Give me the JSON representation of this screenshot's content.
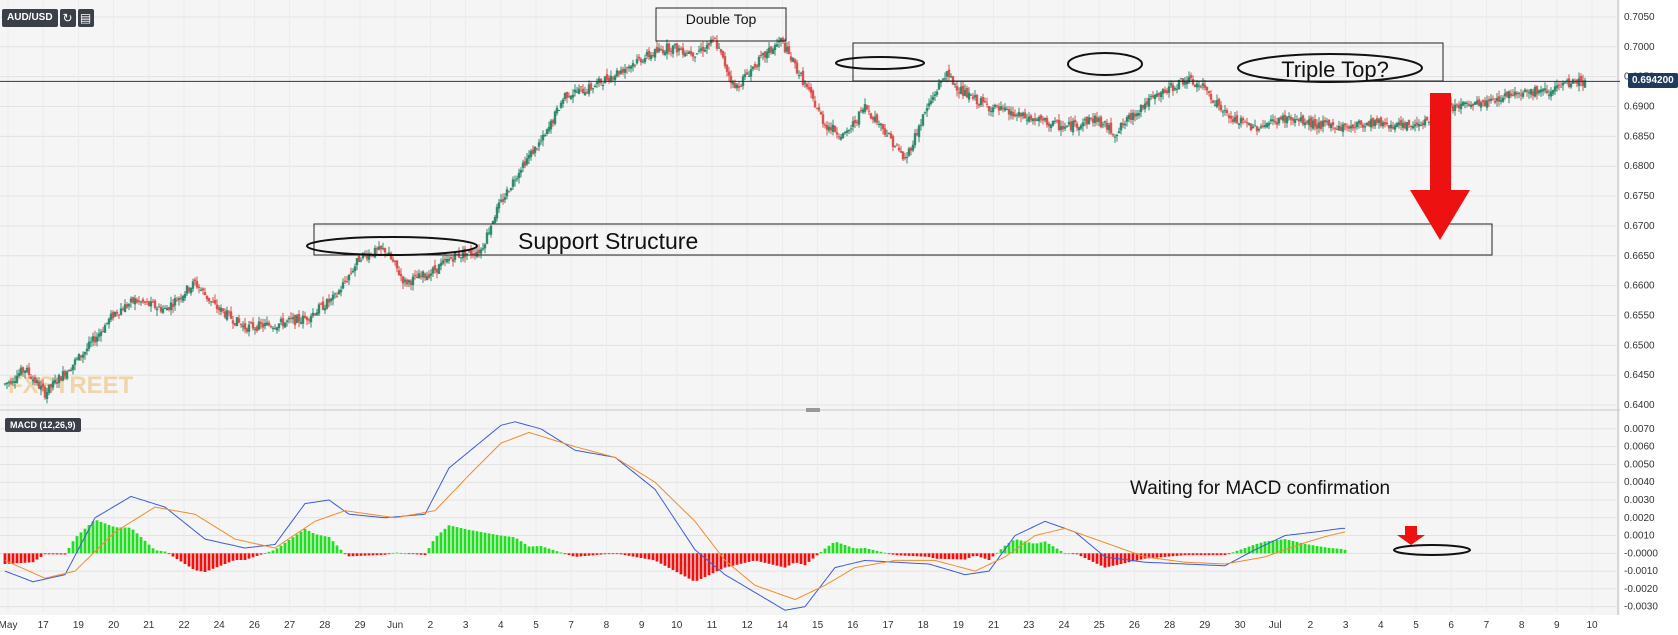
{
  "header": {
    "symbol": "AUD/USD",
    "refresh_icon": "refresh-icon",
    "settings_icon": "chart-settings-icon"
  },
  "watermark": "FXSTREET",
  "current_price_label": "0.694200",
  "indicator_label": "MACD (12,26,9)",
  "colors": {
    "up": "#2e8b6f",
    "down": "#d9534f",
    "macd": "#3b5bdb",
    "signal": "#f28c28",
    "hist_pos": "#22dd22",
    "hist_neg": "#ee1111",
    "arrow": "#ee1111"
  },
  "annotations": {
    "double_top": "Double Top",
    "triple_top": "Triple Top?",
    "support": "Support Structure",
    "macd_wait": "Waiting for MACD confirmation"
  },
  "x_ticks": [
    "May",
    "17",
    "19",
    "20",
    "21",
    "22",
    "24",
    "26",
    "27",
    "28",
    "29",
    "Jun",
    "2",
    "3",
    "4",
    "5",
    "7",
    "8",
    "9",
    "10",
    "11",
    "12",
    "14",
    "15",
    "16",
    "17",
    "18",
    "19",
    "21",
    "23",
    "24",
    "25",
    "26",
    "28",
    "29",
    "30",
    "Jul",
    "2",
    "3",
    "4",
    "5",
    "6",
    "7",
    "8",
    "9",
    "10"
  ],
  "chart_data": [
    {
      "type": "candlestick",
      "symbol": "AUD/USD",
      "ylim": [
        0.6395,
        0.7065
      ],
      "yticks": [
        "0.7050",
        "0.7000",
        "0.6950",
        "0.6900",
        "0.6850",
        "0.6800",
        "0.6750",
        "0.6700",
        "0.6650",
        "0.6600",
        "0.6550",
        "0.6500",
        "0.6450",
        "0.6400"
      ],
      "anchors": [
        [
          0,
          0.6435
        ],
        [
          10,
          0.646
        ],
        [
          20,
          0.642
        ],
        [
          40,
          0.649
        ],
        [
          55,
          0.6555
        ],
        [
          65,
          0.6575
        ],
        [
          80,
          0.656
        ],
        [
          95,
          0.6605
        ],
        [
          105,
          0.6565
        ],
        [
          120,
          0.653
        ],
        [
          135,
          0.6535
        ],
        [
          150,
          0.6545
        ],
        [
          165,
          0.658
        ],
        [
          178,
          0.665
        ],
        [
          190,
          0.666
        ],
        [
          200,
          0.6605
        ],
        [
          212,
          0.662
        ],
        [
          225,
          0.665
        ],
        [
          238,
          0.666
        ],
        [
          245,
          0.672
        ],
        [
          258,
          0.68
        ],
        [
          270,
          0.685
        ],
        [
          280,
          0.692
        ],
        [
          292,
          0.693
        ],
        [
          305,
          0.6955
        ],
        [
          318,
          0.698
        ],
        [
          332,
          0.7
        ],
        [
          345,
          0.699
        ],
        [
          355,
          0.701
        ],
        [
          365,
          0.693
        ],
        [
          375,
          0.697
        ],
        [
          388,
          0.701
        ],
        [
          398,
          0.695
        ],
        [
          410,
          0.687
        ],
        [
          420,
          0.685
        ],
        [
          430,
          0.69
        ],
        [
          440,
          0.686
        ],
        [
          450,
          0.681
        ],
        [
          460,
          0.689
        ],
        [
          470,
          0.6955
        ],
        [
          480,
          0.692
        ],
        [
          492,
          0.69
        ],
        [
          505,
          0.6885
        ],
        [
          518,
          0.6875
        ],
        [
          530,
          0.6865
        ],
        [
          545,
          0.688
        ],
        [
          555,
          0.6855
        ],
        [
          568,
          0.69
        ],
        [
          580,
          0.6925
        ],
        [
          590,
          0.6945
        ],
        [
          600,
          0.693
        ],
        [
          612,
          0.688
        ],
        [
          625,
          0.6865
        ],
        [
          640,
          0.688
        ],
        [
          655,
          0.687
        ],
        [
          670,
          0.6865
        ],
        [
          685,
          0.6875
        ],
        [
          700,
          0.6865
        ],
        [
          712,
          0.688
        ],
        [
          725,
          0.69
        ],
        [
          740,
          0.6905
        ],
        [
          755,
          0.6925
        ],
        [
          770,
          0.6925
        ],
        [
          785,
          0.694
        ],
        [
          790,
          0.6942
        ]
      ],
      "current_price": 0.6942,
      "xlabel": "",
      "ylabel": ""
    },
    {
      "type": "macd",
      "name": "MACD (12,26,9)",
      "ylim": [
        -0.0033,
        0.0075
      ],
      "yticks": [
        "0.0070",
        "0.0060",
        "0.0050",
        "0.0040",
        "0.0030",
        "0.0020",
        "0.0010",
        "-0.0000",
        "-0.0010",
        "-0.0020",
        "-0.0030"
      ],
      "macd_anchors": [
        [
          0,
          -0.001
        ],
        [
          14,
          -0.0016
        ],
        [
          30,
          -0.0012
        ],
        [
          45,
          0.002
        ],
        [
          63,
          0.0032
        ],
        [
          80,
          0.0026
        ],
        [
          100,
          0.0008
        ],
        [
          120,
          0.0003
        ],
        [
          135,
          0.0005
        ],
        [
          150,
          0.0028
        ],
        [
          162,
          0.003
        ],
        [
          172,
          0.0022
        ],
        [
          190,
          0.002
        ],
        [
          210,
          0.0022
        ],
        [
          222,
          0.0048
        ],
        [
          235,
          0.006
        ],
        [
          248,
          0.0072
        ],
        [
          255,
          0.0074
        ],
        [
          268,
          0.007
        ],
        [
          285,
          0.0058
        ],
        [
          305,
          0.0054
        ],
        [
          325,
          0.0036
        ],
        [
          345,
          0.0002
        ],
        [
          360,
          -0.0012
        ],
        [
          375,
          -0.0022
        ],
        [
          390,
          -0.0032
        ],
        [
          400,
          -0.003
        ],
        [
          415,
          -0.0008
        ],
        [
          430,
          -0.0004
        ],
        [
          445,
          -0.0005
        ],
        [
          462,
          -0.0006
        ],
        [
          480,
          -0.0012
        ],
        [
          492,
          -0.001
        ],
        [
          505,
          0.001
        ],
        [
          520,
          0.0018
        ],
        [
          535,
          0.0012
        ],
        [
          550,
          -0.0002
        ],
        [
          570,
          -0.0005
        ],
        [
          590,
          -0.0006
        ],
        [
          610,
          -0.0007
        ],
        [
          625,
          0.0002
        ],
        [
          640,
          0.001
        ],
        [
          655,
          0.0012
        ],
        [
          668,
          0.0014
        ],
        [
          670,
          0.0014
        ]
      ],
      "signal_anchors": [
        [
          0,
          -0.0004
        ],
        [
          20,
          -0.0014
        ],
        [
          35,
          -0.001
        ],
        [
          55,
          0.0012
        ],
        [
          75,
          0.0026
        ],
        [
          95,
          0.0022
        ],
        [
          115,
          0.0008
        ],
        [
          135,
          0.0003
        ],
        [
          155,
          0.0018
        ],
        [
          170,
          0.0024
        ],
        [
          195,
          0.002
        ],
        [
          215,
          0.0024
        ],
        [
          232,
          0.0044
        ],
        [
          248,
          0.0062
        ],
        [
          262,
          0.0068
        ],
        [
          285,
          0.006
        ],
        [
          305,
          0.0054
        ],
        [
          325,
          0.004
        ],
        [
          345,
          0.0018
        ],
        [
          360,
          -0.0004
        ],
        [
          375,
          -0.0018
        ],
        [
          395,
          -0.0026
        ],
        [
          410,
          -0.0018
        ],
        [
          425,
          -0.0008
        ],
        [
          445,
          -0.0004
        ],
        [
          465,
          -0.0004
        ],
        [
          485,
          -0.001
        ],
        [
          500,
          -0.0002
        ],
        [
          515,
          0.001
        ],
        [
          530,
          0.0014
        ],
        [
          550,
          0.0006
        ],
        [
          570,
          -0.0002
        ],
        [
          590,
          -0.0005
        ],
        [
          610,
          -0.0006
        ],
        [
          630,
          -0.0002
        ],
        [
          650,
          0.0006
        ],
        [
          662,
          0.001
        ],
        [
          670,
          0.0012
        ]
      ],
      "xlabel": "",
      "ylabel": ""
    }
  ]
}
